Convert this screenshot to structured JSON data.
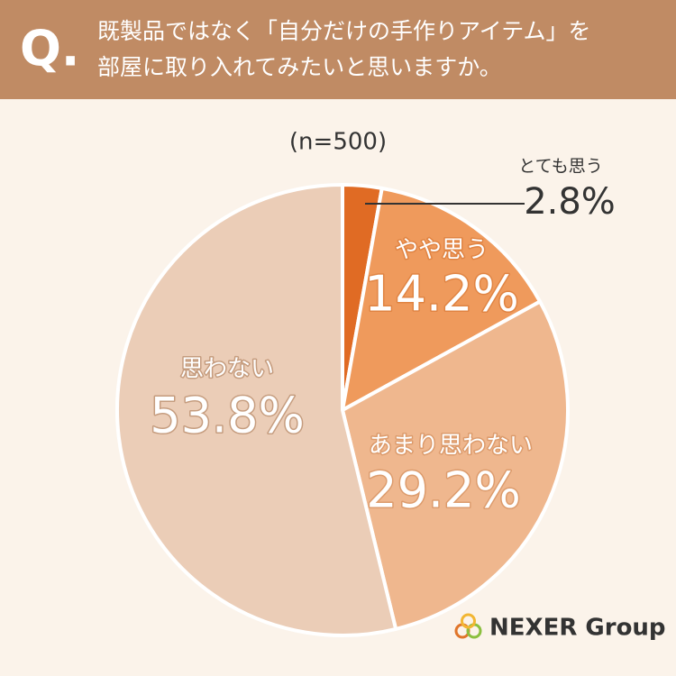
{
  "chart_data": {
    "type": "pie",
    "question_label": "Q.",
    "title_lines": [
      "既製品ではなく「自分だけの手作りアイテム」を",
      "部屋に取り入れてみたいと思いますか。"
    ],
    "subtitle": "(n=500)",
    "categories": [
      "とても思う",
      "やや思う",
      "あまり思わない",
      "思わない"
    ],
    "values": [
      2.8,
      14.2,
      29.2,
      53.8
    ],
    "value_labels": [
      "2.8%",
      "14.2%",
      "29.2%",
      "53.8%"
    ],
    "colors": [
      "#e06b24",
      "#ef9a5c",
      "#efb78e",
      "#ebcdb7"
    ]
  },
  "logo": "NEXER Group"
}
